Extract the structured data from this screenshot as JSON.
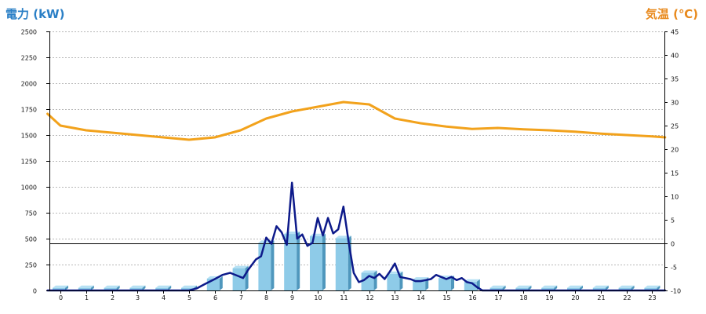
{
  "header": {
    "left_title": "電力 (kW)",
    "right_title": "気温 (℃)"
  },
  "chart_data": {
    "type": "bar",
    "categories": [
      "0",
      "1",
      "2",
      "3",
      "4",
      "5",
      "6",
      "7",
      "8",
      "9",
      "10",
      "11",
      "12",
      "13",
      "14",
      "15",
      "16",
      "17",
      "18",
      "19",
      "20",
      "21",
      "22",
      "23"
    ],
    "y_left": {
      "ticks": [
        "0",
        "250",
        "500",
        "750",
        "1000",
        "1250",
        "1500",
        "1750",
        "2000",
        "2250",
        "2500"
      ],
      "ylim": [
        0,
        2500
      ]
    },
    "y_right": {
      "ticks": [
        "-10",
        "-5",
        "0",
        "5",
        "10",
        "15",
        "20",
        "25",
        "30",
        "35",
        "40",
        "45"
      ],
      "ylim": [
        -10,
        45
      ]
    },
    "grid": "horizontal dotted",
    "series": [
      {
        "kind": "bar",
        "axis": "left",
        "color": "#8cc8e6",
        "values": [
          25,
          25,
          25,
          25,
          25,
          25,
          115,
          215,
          460,
          545,
          525,
          505,
          170,
          160,
          105,
          120,
          85,
          25,
          25,
          25,
          25,
          25,
          25,
          25
        ]
      },
      {
        "kind": "line",
        "axis": "left",
        "color": "#0d1a8a",
        "x": [
          -0.5,
          0,
          1,
          2,
          3,
          4,
          5,
          5.3,
          5.6,
          6,
          6.3,
          6.6,
          6.9,
          7.1,
          7.3,
          7.6,
          7.8,
          8.0,
          8.2,
          8.4,
          8.6,
          8.8,
          9.0,
          9.2,
          9.4,
          9.6,
          9.8,
          10.0,
          10.2,
          10.4,
          10.6,
          10.8,
          11.0,
          11.2,
          11.4,
          11.6,
          11.8,
          12.0,
          12.2,
          12.4,
          12.6,
          12.8,
          13.0,
          13.2,
          13.4,
          13.6,
          13.8,
          14.0,
          14.2,
          14.4,
          14.6,
          14.8,
          15.0,
          15.2,
          15.4,
          15.6,
          15.8,
          16.0,
          16.2,
          16.4,
          17,
          18,
          19,
          20,
          21,
          22,
          23,
          23.5
        ],
        "y": [
          0,
          0,
          0,
          0,
          0,
          0,
          0,
          20,
          60,
          110,
          150,
          170,
          140,
          120,
          200,
          300,
          330,
          510,
          450,
          620,
          560,
          440,
          1040,
          500,
          540,
          430,
          460,
          700,
          530,
          700,
          550,
          590,
          810,
          470,
          170,
          80,
          100,
          140,
          120,
          160,
          110,
          180,
          260,
          130,
          120,
          110,
          90,
          90,
          100,
          110,
          150,
          130,
          110,
          130,
          100,
          120,
          80,
          70,
          30,
          0,
          0,
          0,
          0,
          0,
          0,
          0,
          0,
          0
        ]
      },
      {
        "kind": "line",
        "axis": "right",
        "color": "#f2a21c",
        "x": [
          -0.5,
          0,
          1,
          2,
          3,
          4,
          5,
          6,
          7,
          8,
          9,
          10,
          11,
          12,
          13,
          14,
          15,
          16,
          17,
          18,
          19,
          20,
          21,
          22,
          23,
          23.5
        ],
        "y": [
          27.5,
          25.0,
          24.0,
          23.5,
          23.0,
          22.5,
          22.0,
          22.5,
          24.0,
          26.5,
          28.0,
          29.0,
          30.0,
          29.5,
          26.5,
          25.5,
          24.8,
          24.3,
          24.5,
          24.2,
          24.0,
          23.7,
          23.3,
          23.0,
          22.7,
          22.5
        ]
      }
    ],
    "reference_line": {
      "axis": "right",
      "value": 0,
      "color": "#000000"
    }
  }
}
